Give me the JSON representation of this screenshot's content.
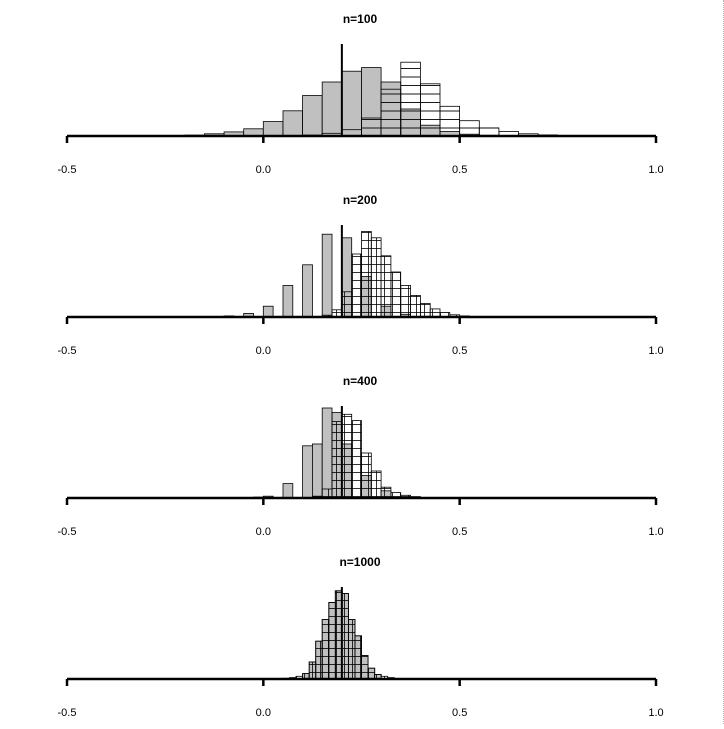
{
  "chart_data": [
    {
      "type": "bar",
      "title": "n=100",
      "xlim": [
        -0.5,
        1.0
      ],
      "xticks": [
        "-0.5",
        "0.0",
        "0.5",
        "1.0"
      ],
      "reference_x": 0.2,
      "bin_width": 0.05,
      "series": [
        {
          "style": "solid-gray",
          "bins": [
            [
              -0.3,
              0.002
            ],
            [
              -0.25,
              0.005
            ],
            [
              -0.2,
              0.01
            ],
            [
              -0.15,
              0.025
            ],
            [
              -0.1,
              0.045
            ],
            [
              -0.05,
              0.08
            ],
            [
              0.0,
              0.16
            ],
            [
              0.05,
              0.28
            ],
            [
              0.1,
              0.45
            ],
            [
              0.15,
              0.6
            ],
            [
              0.2,
              0.72
            ],
            [
              0.25,
              0.76
            ],
            [
              0.3,
              0.6
            ],
            [
              0.35,
              0.3
            ],
            [
              0.4,
              0.12
            ],
            [
              0.45,
              0.05
            ],
            [
              0.5,
              0.02
            ],
            [
              0.55,
              0.008
            ],
            [
              0.6,
              0.003
            ]
          ]
        },
        {
          "style": "hatched-horizontal",
          "bins": [
            [
              0.05,
              0.003
            ],
            [
              0.1,
              0.01
            ],
            [
              0.15,
              0.03
            ],
            [
              0.2,
              0.07
            ],
            [
              0.25,
              0.2
            ],
            [
              0.3,
              0.52
            ],
            [
              0.35,
              0.82
            ],
            [
              0.4,
              0.58
            ],
            [
              0.45,
              0.33
            ],
            [
              0.5,
              0.17
            ],
            [
              0.55,
              0.09
            ],
            [
              0.6,
              0.05
            ],
            [
              0.65,
              0.025
            ],
            [
              0.7,
              0.012
            ],
            [
              0.75,
              0.005
            ],
            [
              0.8,
              0.002
            ]
          ]
        }
      ]
    },
    {
      "type": "bar",
      "title": "n=200",
      "xlim": [
        -0.5,
        1.0
      ],
      "xticks": [
        "-0.5",
        "0.0",
        "0.5",
        "1.0"
      ],
      "reference_x": 0.2,
      "bin_width": 0.025,
      "series": [
        {
          "style": "solid-gray",
          "bins": [
            [
              -0.15,
              0.003
            ],
            [
              -0.1,
              0.012
            ],
            [
              -0.05,
              0.04
            ],
            [
              0.0,
              0.12
            ],
            [
              0.05,
              0.35
            ],
            [
              0.1,
              0.58
            ],
            [
              0.15,
              0.92
            ],
            [
              0.2,
              0.88
            ],
            [
              0.25,
              0.45
            ],
            [
              0.3,
              0.12
            ],
            [
              0.35,
              0.03
            ],
            [
              0.4,
              0.008
            ]
          ]
        },
        {
          "style": "hatched-grid",
          "bins": [
            [
              0.15,
              0.02
            ],
            [
              0.175,
              0.08
            ],
            [
              0.2,
              0.28
            ],
            [
              0.225,
              0.7
            ],
            [
              0.25,
              0.95
            ],
            [
              0.275,
              0.88
            ],
            [
              0.3,
              0.68
            ],
            [
              0.325,
              0.5
            ],
            [
              0.35,
              0.35
            ],
            [
              0.375,
              0.24
            ],
            [
              0.4,
              0.15
            ],
            [
              0.425,
              0.09
            ],
            [
              0.45,
              0.05
            ],
            [
              0.475,
              0.025
            ],
            [
              0.5,
              0.012
            ],
            [
              0.525,
              0.006
            ],
            [
              0.55,
              0.003
            ]
          ]
        }
      ]
    },
    {
      "type": "bar",
      "title": "n=400",
      "xlim": [
        -0.5,
        1.0
      ],
      "xticks": [
        "-0.5",
        "0.0",
        "0.5",
        "1.0"
      ],
      "reference_x": 0.2,
      "bin_width": 0.025,
      "series": [
        {
          "style": "solid-gray",
          "bins": [
            [
              -0.075,
              0.003
            ],
            [
              -0.025,
              0.01
            ],
            [
              0.0,
              0.02
            ],
            [
              0.05,
              0.16
            ],
            [
              0.1,
              0.58
            ],
            [
              0.125,
              0.6
            ],
            [
              0.15,
              1.0
            ],
            [
              0.175,
              0.95
            ],
            [
              0.2,
              0.6
            ],
            [
              0.25,
              0.25
            ],
            [
              0.3,
              0.08
            ]
          ]
        },
        {
          "style": "hatched-grid",
          "bins": [
            [
              0.125,
              0.02
            ],
            [
              0.15,
              0.1
            ],
            [
              0.175,
              0.85
            ],
            [
              0.2,
              0.93
            ],
            [
              0.225,
              0.86
            ],
            [
              0.25,
              0.5
            ],
            [
              0.275,
              0.3
            ],
            [
              0.3,
              0.12
            ],
            [
              0.325,
              0.06
            ],
            [
              0.35,
              0.03
            ],
            [
              0.375,
              0.015
            ],
            [
              0.4,
              0.006
            ]
          ]
        }
      ]
    },
    {
      "type": "bar",
      "title": "n=1000",
      "xlim": [
        -0.5,
        1.0
      ],
      "xticks": [
        "-0.5",
        "0.0",
        "0.5",
        "1.0"
      ],
      "reference_x": 0.2,
      "bin_width": 0.0167,
      "series": [
        {
          "style": "solid-gray",
          "bins": [
            [
              0.1,
              0.06
            ],
            [
              0.1167,
              0.19
            ],
            [
              0.1333,
              0.42
            ],
            [
              0.15,
              0.66
            ],
            [
              0.1667,
              0.85
            ],
            [
              0.1833,
              0.98
            ],
            [
              0.2,
              0.95
            ],
            [
              0.2167,
              0.66
            ],
            [
              0.2333,
              0.48
            ],
            [
              0.25,
              0.26
            ],
            [
              0.2667,
              0.12
            ],
            [
              0.2833,
              0.05
            ]
          ]
        },
        {
          "style": "hatched-grid",
          "bins": [
            [
              0.0333,
              0.004
            ],
            [
              0.05,
              0.008
            ],
            [
              0.0667,
              0.015
            ],
            [
              0.0833,
              0.03
            ],
            [
              0.1,
              0.06
            ],
            [
              0.1167,
              0.19
            ],
            [
              0.1333,
              0.42
            ],
            [
              0.15,
              0.66
            ],
            [
              0.1667,
              0.85
            ],
            [
              0.1833,
              0.98
            ],
            [
              0.2,
              0.95
            ],
            [
              0.2167,
              0.66
            ],
            [
              0.2333,
              0.48
            ],
            [
              0.25,
              0.26
            ],
            [
              0.2667,
              0.12
            ],
            [
              0.2833,
              0.05
            ],
            [
              0.3,
              0.03
            ],
            [
              0.3167,
              0.015
            ],
            [
              0.3333,
              0.007
            ]
          ]
        }
      ]
    }
  ]
}
